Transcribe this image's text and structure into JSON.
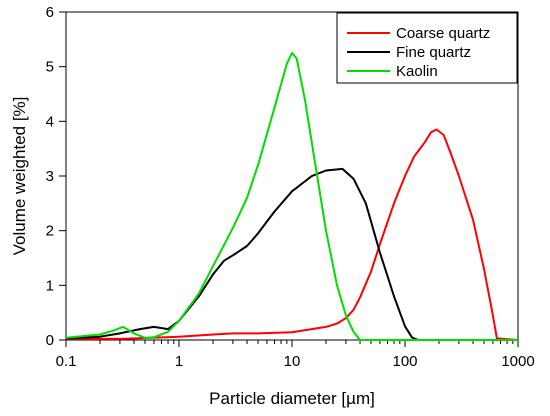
{
  "chart_data": {
    "type": "line",
    "title": "",
    "xlabel": "Particle diameter [µm]",
    "ylabel": "Volume weighted [%]",
    "xscale": "log",
    "xlim": [
      0.1,
      1000
    ],
    "ylim": [
      0,
      6
    ],
    "xticks": [
      0.1,
      1,
      10,
      100,
      1000
    ],
    "xtick_labels": [
      "0.1",
      "1",
      "10",
      "100",
      "1000"
    ],
    "yticks": [
      0,
      1,
      2,
      3,
      4,
      5,
      6
    ],
    "ytick_labels": [
      "0",
      "1",
      "2",
      "3",
      "4",
      "5",
      "6"
    ],
    "grid": false,
    "legend_position": "top-right",
    "series": [
      {
        "name": "Coarse quartz",
        "color": "#ff0000",
        "x": [
          0.1,
          0.3,
          1,
          2,
          3,
          5,
          10,
          20,
          25,
          30,
          35,
          40,
          50,
          60,
          80,
          100,
          120,
          150,
          170,
          190,
          220,
          250,
          300,
          400,
          500,
          600,
          650,
          1000
        ],
        "y": [
          0.02,
          0.02,
          0.06,
          0.1,
          0.12,
          0.12,
          0.14,
          0.24,
          0.3,
          0.4,
          0.55,
          0.78,
          1.25,
          1.75,
          2.5,
          3.0,
          3.35,
          3.62,
          3.8,
          3.85,
          3.75,
          3.45,
          3.0,
          2.2,
          1.3,
          0.45,
          0.03,
          0.0
        ]
      },
      {
        "name": "Fine quartz",
        "color": "#000000",
        "x": [
          0.1,
          0.2,
          0.3,
          0.45,
          0.6,
          0.8,
          1,
          1.5,
          2,
          2.5,
          3,
          4,
          5,
          7,
          10,
          15,
          20,
          28,
          35,
          45,
          60,
          80,
          100,
          115,
          130,
          1000
        ],
        "y": [
          0.03,
          0.06,
          0.12,
          0.2,
          0.24,
          0.2,
          0.35,
          0.8,
          1.2,
          1.45,
          1.55,
          1.72,
          1.95,
          2.35,
          2.72,
          3.0,
          3.1,
          3.13,
          2.95,
          2.5,
          1.6,
          0.8,
          0.25,
          0.05,
          0.0,
          0.0
        ]
      },
      {
        "name": "Kaolin",
        "color": "#00dd00",
        "x": [
          0.1,
          0.2,
          0.25,
          0.32,
          0.4,
          0.5,
          0.6,
          0.8,
          1,
          1.5,
          2,
          3,
          4,
          5,
          7,
          9,
          10,
          11,
          13,
          15,
          20,
          25,
          30,
          35,
          40,
          1000
        ],
        "y": [
          0.04,
          0.1,
          0.16,
          0.24,
          0.12,
          0.04,
          0.05,
          0.15,
          0.35,
          0.85,
          1.35,
          2.05,
          2.6,
          3.2,
          4.25,
          5.05,
          5.25,
          5.15,
          4.4,
          3.6,
          2.0,
          1.0,
          0.45,
          0.15,
          0.0,
          0.0
        ]
      }
    ]
  }
}
